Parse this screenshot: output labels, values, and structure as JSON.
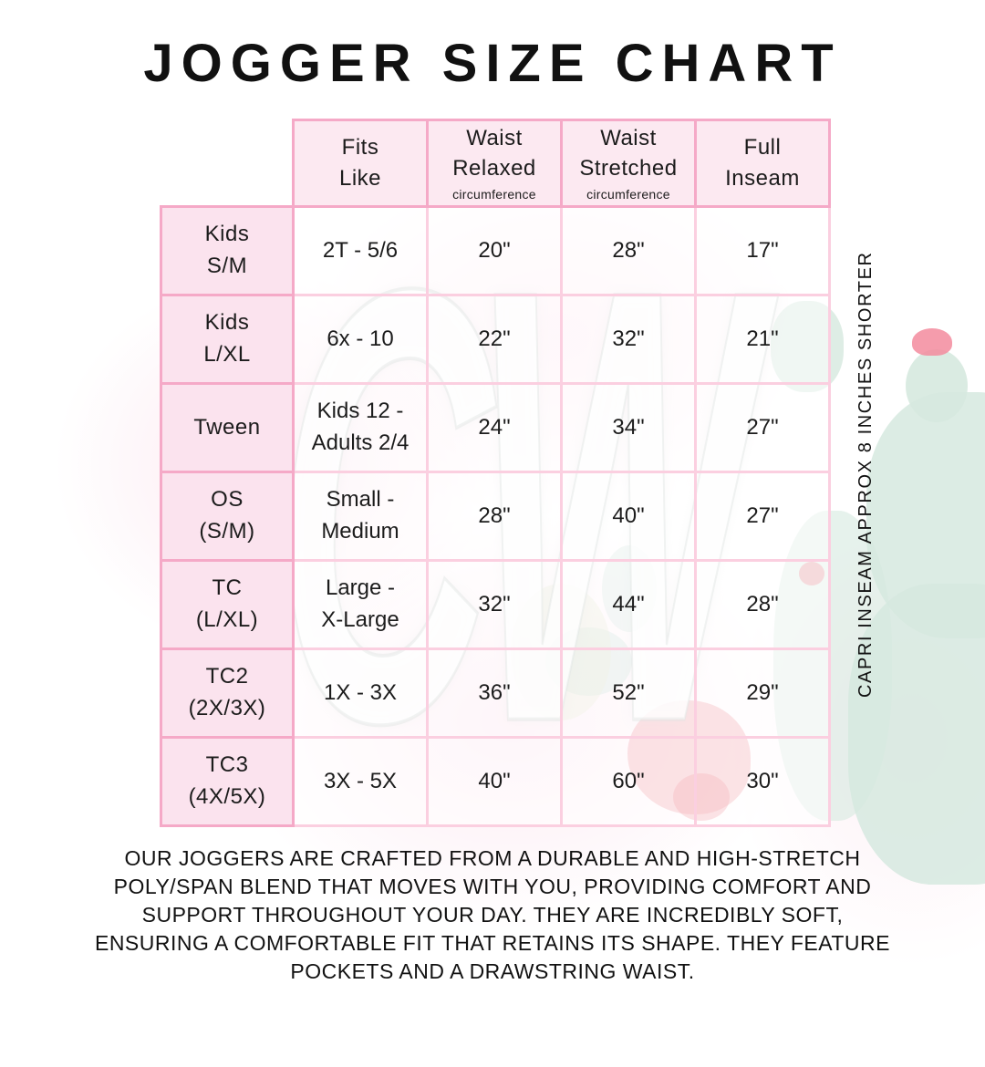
{
  "page": {
    "title": "JOGGER SIZE CHART",
    "side_note": "CAPRI INSEAM APPROX 8 INCHES SHORTER",
    "description": "OUR JOGGERS ARE CRAFTED FROM A DURABLE AND HIGH-STRETCH\nPOLY/SPAN BLEND THAT MOVES WITH YOU, PROVIDING COMFORT AND\nSUPPORT THROUGHOUT YOUR DAY. THEY ARE INCREDIBLY SOFT,\nENSURING A COMFORTABLE FIT THAT RETAINS ITS SHAPE. THEY FEATURE\nPOCKETS AND A DRAWSTRING WAIST."
  },
  "watermark": "CW",
  "colors": {
    "grid_pink_strong": "#F5A9C7",
    "grid_pink_light": "#FBCFE0",
    "header_cell_fill": "#FCE9F1",
    "label_cell_fill": "#FBE3EE",
    "text_black": "#111111",
    "wash_pink": "#FAD7E5",
    "cactus_green": "#D6E9DF",
    "flower_red": "#EE7882"
  },
  "table": {
    "columns": [
      {
        "label": "Fits\nLike",
        "sub": ""
      },
      {
        "label": "Waist\nRelaxed",
        "sub": "circumference"
      },
      {
        "label": "Waist\nStretched",
        "sub": "circumference"
      },
      {
        "label": "Full\nInseam",
        "sub": ""
      }
    ],
    "rows": [
      {
        "size": "Kids\nS/M",
        "fits": "2T - 5/6",
        "waist_relaxed": "20\"",
        "waist_stretched": "28\"",
        "full_inseam": "17\""
      },
      {
        "size": "Kids\nL/XL",
        "fits": "6x - 10",
        "waist_relaxed": "22\"",
        "waist_stretched": "32\"",
        "full_inseam": "21\""
      },
      {
        "size": "Tween",
        "fits": "Kids 12 -\nAdults 2/4",
        "waist_relaxed": "24\"",
        "waist_stretched": "34\"",
        "full_inseam": "27\""
      },
      {
        "size": "OS\n(S/M)",
        "fits": "Small -\nMedium",
        "waist_relaxed": "28\"",
        "waist_stretched": "40\"",
        "full_inseam": "27\""
      },
      {
        "size": "TC\n(L/XL)",
        "fits": "Large -\nX-Large",
        "waist_relaxed": "32\"",
        "waist_stretched": "44\"",
        "full_inseam": "28\""
      },
      {
        "size": "TC2\n(2X/3X)",
        "fits": "1X - 3X",
        "waist_relaxed": "36\"",
        "waist_stretched": "52\"",
        "full_inseam": "29\""
      },
      {
        "size": "TC3\n(4X/5X)",
        "fits": "3X - 5X",
        "waist_relaxed": "40\"",
        "waist_stretched": "60\"",
        "full_inseam": "30\""
      }
    ]
  }
}
